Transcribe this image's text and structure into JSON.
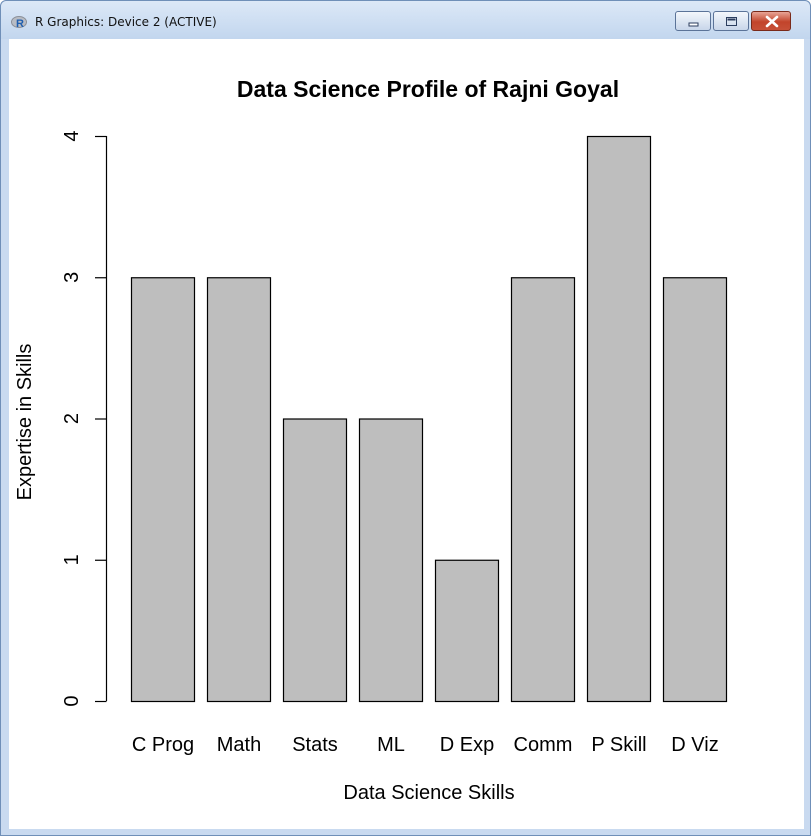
{
  "window": {
    "title": "R Graphics: Device 2 (ACTIVE)",
    "controls": {
      "minimize": "minimize",
      "maximize": "maximize",
      "close": "close"
    },
    "icons": [
      "r-logo-icon",
      "minimize-icon",
      "maximize-icon",
      "close-icon"
    ]
  },
  "chart_data": {
    "type": "bar",
    "title": "Data Science Profile of Rajni Goyal",
    "xlabel": "Data Science Skills",
    "ylabel": "Expertise in Skills",
    "categories": [
      "C Prog",
      "Math",
      "Stats",
      "ML",
      "D Exp",
      "Comm",
      "P Skill",
      "D Viz"
    ],
    "values": [
      3,
      3,
      2,
      2,
      1,
      3,
      4,
      3
    ],
    "ylim": [
      0,
      4
    ],
    "yticks": [
      "0",
      "1",
      "2",
      "3",
      "4"
    ],
    "bar_color": "#bebebe",
    "bar_border": "#000000",
    "grid": false,
    "legend": "none"
  }
}
